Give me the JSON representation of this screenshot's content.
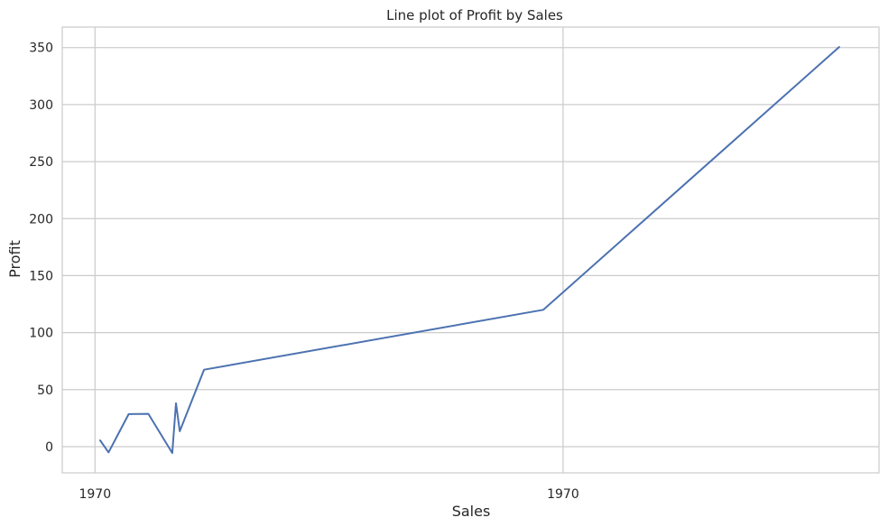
{
  "chart_data": {
    "type": "line",
    "title": "Line plot of Profit by Sales",
    "xlabel": "Sales",
    "ylabel": "Profit",
    "x_tick_labels": [
      "1970",
      "1970"
    ],
    "x_tick_positions": [
      0,
      1
    ],
    "y_ticks": [
      0,
      50,
      100,
      150,
      200,
      250,
      300,
      350
    ],
    "ylim": [
      -23,
      368
    ],
    "xlim": [
      -0.07,
      1.675
    ],
    "grid": true,
    "series": [
      {
        "color": "#4c72b0",
        "x": [
          0.011,
          0.029,
          0.072,
          0.114,
          0.165,
          0.173,
          0.181,
          0.233,
          0.958,
          1.59
        ],
        "y": [
          5.5,
          -5,
          28.5,
          28.8,
          -5.6,
          38,
          13.5,
          67.5,
          120,
          350.5
        ]
      }
    ],
    "colors": {
      "grid": "#cccccc",
      "spine": "#cccccc",
      "line": "#4c72b0",
      "text": "#262626"
    }
  }
}
